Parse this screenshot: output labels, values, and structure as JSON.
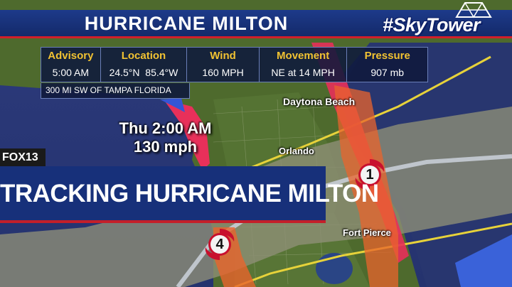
{
  "title": "HURRICANE MILTON",
  "brand": {
    "skytower_text": "#SkyTower",
    "station_logo": "FOX13"
  },
  "advisory_table": {
    "headers": [
      "Advisory",
      "Location",
      "Wind",
      "Movement",
      "Pressure"
    ],
    "values": [
      "5:00 AM",
      "24.5°N  85.4°W",
      "160 MPH",
      "NE at 14 MPH",
      "907 mb"
    ],
    "distance_note": "300 MI SW OF TAMPA FLORIDA"
  },
  "forecast_point": {
    "time": "Thu 2:00 AM",
    "wind": "130 mph"
  },
  "cities": {
    "daytona": "Daytona Beach",
    "orlando": "Orlando",
    "fort_pierce": "Fort Pierce"
  },
  "storm_markers": {
    "category_a": "1",
    "category_b": "4"
  },
  "lower_third": "TRACKING HURRICANE MILTON",
  "colors": {
    "title_bar": "#1d3a8a",
    "accent_red": "#d21f2a",
    "header_yellow": "#f1c232",
    "cone_gray": "#8a8a72",
    "hurricane_warning": "#e8305a",
    "track_orange": "#e9642c",
    "cone_outline": "#e7d23a",
    "land_green": "#4f6b2c",
    "water": "#2a3876"
  },
  "icons": [
    "hurricane-icon",
    "diamond-tower-icon"
  ]
}
